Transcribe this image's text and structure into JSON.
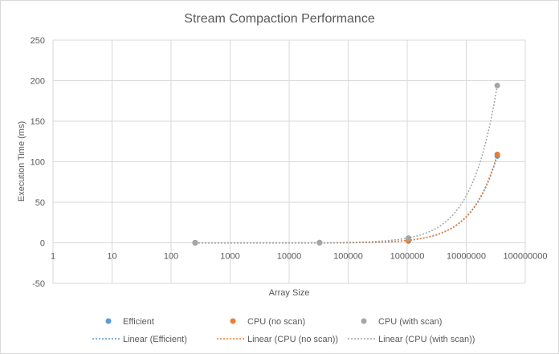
{
  "chart_data": {
    "type": "scatter",
    "title": "Stream Compaction Performance",
    "xlabel": "Array Size",
    "ylabel": "Execution Time (ms)",
    "xscale": "log",
    "xlim": [
      1,
      100000000
    ],
    "ylim": [
      -50,
      250
    ],
    "xticks": [
      "1",
      "10",
      "100",
      "1000",
      "10000",
      "100000",
      "1000000",
      "10000000",
      "100000000"
    ],
    "yticks": [
      "-50",
      "0",
      "50",
      "100",
      "150",
      "200",
      "250"
    ],
    "grid": true,
    "legend_position": "bottom",
    "series": [
      {
        "name": "Efficient",
        "color": "#5B9BD5",
        "x": [
          256,
          32768,
          1048576,
          33554432
        ],
        "y": [
          0.1,
          0.2,
          2.2,
          107
        ],
        "trendline": {
          "name": "Linear (Efficient)",
          "style": "dotted",
          "color": "#5B9BD5"
        }
      },
      {
        "name": "CPU (no scan)",
        "color": "#ED7D31",
        "x": [
          256,
          32768,
          1048576,
          33554432
        ],
        "y": [
          0.0,
          0.1,
          3.0,
          109
        ],
        "trendline": {
          "name": "Linear (CPU (no scan))",
          "style": "dotted",
          "color": "#ED7D31"
        }
      },
      {
        "name": "CPU (with scan)",
        "color": "#A5A5A5",
        "x": [
          256,
          32768,
          1048576,
          33554432
        ],
        "y": [
          0.1,
          0.3,
          5.8,
          194
        ],
        "trendline": {
          "name": "Linear (CPU (with scan))",
          "style": "dotted",
          "color": "#A5A5A5"
        }
      }
    ]
  }
}
